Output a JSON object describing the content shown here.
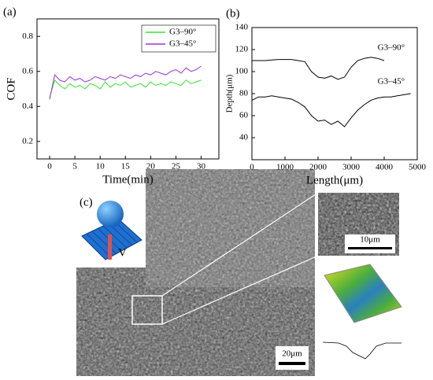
{
  "chart_data": [
    {
      "type": "line",
      "panel": "(a)",
      "xlabel": "Time(min)",
      "ylabel": "COF",
      "x": [
        0,
        1,
        2,
        3,
        4,
        5,
        6,
        7,
        8,
        9,
        10,
        11,
        12,
        13,
        14,
        15,
        16,
        17,
        18,
        19,
        20,
        21,
        22,
        23,
        24,
        25,
        26,
        27,
        28,
        29,
        30
      ],
      "series": [
        {
          "name": "G3–90°",
          "color": "#33e633",
          "values": [
            0.45,
            0.55,
            0.52,
            0.5,
            0.53,
            0.51,
            0.52,
            0.5,
            0.53,
            0.52,
            0.5,
            0.54,
            0.51,
            0.53,
            0.52,
            0.54,
            0.51,
            0.52,
            0.53,
            0.51,
            0.54,
            0.52,
            0.53,
            0.52,
            0.54,
            0.53,
            0.52,
            0.55,
            0.53,
            0.54,
            0.55
          ]
        },
        {
          "name": "G3–45°",
          "color": "#9933dd",
          "values": [
            0.44,
            0.58,
            0.55,
            0.54,
            0.57,
            0.55,
            0.56,
            0.54,
            0.55,
            0.57,
            0.56,
            0.55,
            0.57,
            0.56,
            0.58,
            0.57,
            0.56,
            0.58,
            0.57,
            0.59,
            0.58,
            0.6,
            0.59,
            0.58,
            0.6,
            0.61,
            0.59,
            0.62,
            0.6,
            0.61,
            0.63
          ]
        }
      ],
      "xlim": [
        -2.5,
        33.5
      ],
      "xticks": [
        0,
        5,
        10,
        15,
        20,
        25,
        30
      ],
      "ylim": [
        0.1,
        0.9
      ],
      "yticks": [
        0.2,
        0.4,
        0.6,
        0.8
      ],
      "legend": "upper right"
    },
    {
      "type": "line",
      "panel": "(b)",
      "xlabel": "Length(μm)",
      "ylabel": "Depth(μm)",
      "series": [
        {
          "name": "G3–90°",
          "color": "#000000",
          "x": [
            0,
            200,
            400,
            600,
            800,
            1000,
            1200,
            1400,
            1600,
            1800,
            2000,
            2200,
            2400,
            2600,
            2800,
            3000,
            3200,
            3400,
            3600,
            3800,
            4000
          ],
          "values": [
            110,
            110,
            110,
            110.5,
            111,
            111,
            111,
            110,
            109,
            100,
            95,
            94,
            96,
            93,
            95,
            104,
            110,
            112,
            113,
            112,
            110
          ]
        },
        {
          "name": "G3–45°",
          "color": "#000000",
          "x": [
            0,
            200,
            400,
            600,
            800,
            1000,
            1200,
            1400,
            1600,
            1800,
            2000,
            2200,
            2400,
            2600,
            2800,
            3000,
            3200,
            3400,
            3600,
            3800,
            4000,
            4200,
            4400,
            4600,
            4800
          ],
          "values": [
            74,
            77,
            77,
            78,
            77,
            76,
            75,
            72,
            68,
            60,
            55,
            56,
            52,
            55,
            50,
            58,
            65,
            70,
            74,
            76,
            77,
            77,
            78,
            79,
            80
          ]
        }
      ],
      "xlim": [
        0,
        5000
      ],
      "xticks": [
        0,
        1000,
        2000,
        3000,
        4000,
        5000
      ],
      "ylim": [
        20,
        140
      ],
      "yticks": [
        40,
        60,
        80,
        100,
        120,
        140
      ],
      "legend": "inline"
    }
  ],
  "panel_c": {
    "label": "(c)",
    "inset_label": "V",
    "scale_bars": [
      "10μm",
      "20μm"
    ]
  }
}
